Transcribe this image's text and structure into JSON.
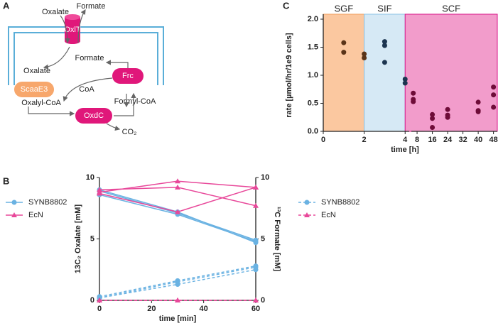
{
  "diagram": {
    "panel": "A",
    "transporter": "OxlT",
    "outside": [
      "Oxalate",
      "Formate"
    ],
    "inside": [
      "Formate",
      "Oxalate"
    ],
    "enzymes": [
      "ScaaE3",
      "Frc",
      "OxdC"
    ],
    "metabolites": [
      "CoA",
      "Oxalyl-CoA",
      "Formyl-CoA",
      "CO₂"
    ]
  },
  "chart_data": [
    {
      "type": "line",
      "panel": "B",
      "xlabel": "time [min]",
      "ylabel": "13C₂ Oxalate [mM]",
      "y2label": "¹³C Formate [mM]",
      "x": [
        0,
        30,
        60
      ],
      "xlim": [
        0,
        60
      ],
      "xticks": [
        0,
        20,
        40,
        60
      ],
      "ylim": [
        0,
        10
      ],
      "yticks": [
        0,
        5,
        10
      ],
      "y2lim": [
        0,
        10
      ],
      "y2ticks": [
        0,
        5,
        10
      ],
      "series": [
        {
          "name": "SYNB8802",
          "color": "#6ab2e2",
          "marker": "circle",
          "dash": false,
          "axis": "y",
          "replicates": [
            [
              8.6,
              7.0,
              4.8
            ],
            [
              8.9,
              7.1,
              4.9
            ],
            [
              9.0,
              7.2,
              4.7
            ]
          ]
        },
        {
          "name": "EcN",
          "color": "#e8489a",
          "marker": "triangle",
          "dash": false,
          "axis": "y",
          "replicates": [
            [
              8.8,
              9.7,
              9.2
            ],
            [
              9.0,
              9.2,
              7.7
            ],
            [
              8.7,
              7.2,
              9.2
            ]
          ]
        },
        {
          "name": "SYNB8802",
          "color": "#6ab2e2",
          "marker": "circle",
          "dash": true,
          "axis": "y2",
          "replicates": [
            [
              0.2,
              1.3,
              2.5
            ],
            [
              0.2,
              1.5,
              2.7
            ],
            [
              0.3,
              1.6,
              2.8
            ]
          ]
        },
        {
          "name": "EcN",
          "color": "#e8489a",
          "marker": "triangle",
          "dash": true,
          "axis": "y2",
          "replicates": [
            [
              0,
              0,
              0
            ],
            [
              0,
              0,
              0
            ],
            [
              0,
              0,
              0
            ]
          ]
        }
      ]
    },
    {
      "type": "scatter",
      "panel": "C",
      "xlabel": "time [h]",
      "ylabel": "rate [µmol/hr/1e9 cells]",
      "ylim": [
        0,
        2
      ],
      "yticks": [
        {
          "value": 0,
          "label": "0.0"
        },
        {
          "value": 0.5,
          "label": "0.5"
        },
        {
          "value": 1,
          "label": "1.0"
        },
        {
          "value": 1.5,
          "label": "1.5"
        },
        {
          "value": 2,
          "label": "2.0"
        }
      ],
      "xsegments": [
        {
          "xlim": [
            0,
            4.2
          ],
          "xticks": [
            0,
            2,
            4
          ]
        },
        {
          "xlim": [
            5,
            50
          ],
          "xticks": [
            8,
            16,
            24,
            32,
            40,
            48
          ]
        }
      ],
      "regions": [
        {
          "label": "SGF",
          "from": 0,
          "to": 2,
          "color": "#fbc8a0",
          "edge": "#f0a060",
          "point": "#5a3418"
        },
        {
          "label": "SIF",
          "from": 2,
          "to": 4,
          "color": "#d6e9f5",
          "edge": "#8cc4e6",
          "point": "#1c3550"
        },
        {
          "label": "SCF",
          "from": 4,
          "to": 50,
          "color": "#f29ccb",
          "edge": "#d8168a",
          "point": "#6e0c38"
        }
      ],
      "x": [
        1,
        1,
        2,
        2,
        3,
        3,
        3,
        4,
        4,
        6,
        6,
        6,
        16,
        16,
        16,
        24,
        24,
        24,
        40,
        40,
        40,
        48,
        48,
        48
      ],
      "y": [
        1.58,
        1.41,
        1.38,
        1.31,
        1.6,
        1.53,
        1.23,
        0.93,
        0.86,
        0.68,
        0.57,
        0.53,
        0.3,
        0.23,
        0.07,
        0.39,
        0.29,
        0.25,
        0.52,
        0.37,
        0.35,
        0.79,
        0.65,
        0.43
      ]
    }
  ]
}
